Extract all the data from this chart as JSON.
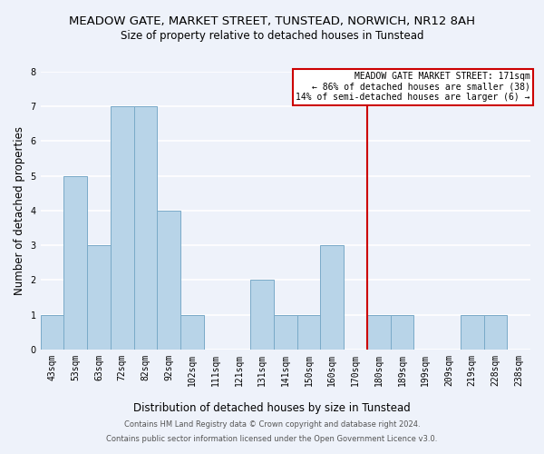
{
  "title": "MEADOW GATE, MARKET STREET, TUNSTEAD, NORWICH, NR12 8AH",
  "subtitle": "Size of property relative to detached houses in Tunstead",
  "xlabel": "Distribution of detached houses by size in Tunstead",
  "ylabel": "Number of detached properties",
  "bar_labels": [
    "43sqm",
    "53sqm",
    "63sqm",
    "72sqm",
    "82sqm",
    "92sqm",
    "102sqm",
    "111sqm",
    "121sqm",
    "131sqm",
    "141sqm",
    "150sqm",
    "160sqm",
    "170sqm",
    "180sqm",
    "189sqm",
    "199sqm",
    "209sqm",
    "219sqm",
    "228sqm",
    "238sqm"
  ],
  "bar_values": [
    1,
    5,
    3,
    7,
    7,
    4,
    1,
    0,
    0,
    2,
    1,
    1,
    3,
    0,
    1,
    1,
    0,
    0,
    1,
    1,
    0
  ],
  "bar_color": "#b8d4e8",
  "bar_edge_color": "#7aaac8",
  "ylim": [
    0,
    8
  ],
  "yticks": [
    0,
    1,
    2,
    3,
    4,
    5,
    6,
    7,
    8
  ],
  "annotation_title": "MEADOW GATE MARKET STREET: 171sqm",
  "annotation_line1": "← 86% of detached houses are smaller (38)",
  "annotation_line2": "14% of semi-detached houses are larger (6) →",
  "footer_line1": "Contains HM Land Registry data © Crown copyright and database right 2024.",
  "footer_line2": "Contains public sector information licensed under the Open Government Licence v3.0.",
  "background_color": "#eef2fa",
  "grid_color": "#ffffff",
  "title_fontsize": 9.5,
  "subtitle_fontsize": 8.5,
  "annotation_box_color": "#ffffff",
  "annotation_border_color": "#cc0000",
  "property_line_color": "#cc0000",
  "property_line_index": 13,
  "annotation_font_size": 7.0,
  "ylabel_fontsize": 8.5,
  "xlabel_fontsize": 8.5,
  "tick_fontsize": 7.0,
  "footer_fontsize": 6.0
}
